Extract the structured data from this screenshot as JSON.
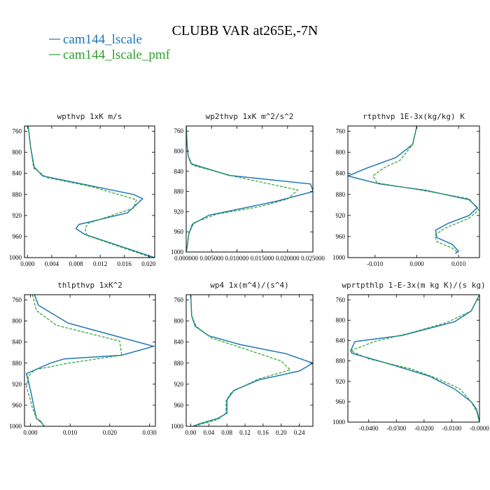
{
  "figure": {
    "title": "CLUBB VAR at265E,-7N",
    "colors": {
      "series1": "#1f77b4",
      "series2": "#2ca02c",
      "axes": "#000000"
    }
  },
  "legend": [
    {
      "name": "cam144_lscale",
      "color": "#1f77b4",
      "dash": "solid"
    },
    {
      "name": "cam144_lscale_pmf",
      "color": "#2ca02c",
      "dash": "dashed"
    }
  ],
  "chart_data": [
    {
      "type": "line",
      "title": "wpthvp 1xK m/s",
      "xlim": [
        -0.0005,
        0.021
      ],
      "ylim": [
        1000,
        750
      ],
      "xticks": [
        0.0,
        0.004,
        0.008,
        0.012,
        0.016,
        0.02
      ],
      "xtick_labels": [
        "0.000",
        "0.004",
        "0.008",
        "0.012",
        "0.016",
        "0.020"
      ],
      "yticks": [
        760,
        800,
        840,
        880,
        920,
        960,
        1000
      ],
      "ytick_labels": [
        "760",
        "800",
        "840",
        "880",
        "920",
        "960",
        "1000"
      ],
      "series": [
        {
          "name": "cam144_lscale",
          "points": [
            [
              0.0001,
              750
            ],
            [
              0.0005,
              790
            ],
            [
              0.0011,
              828
            ],
            [
              0.0025,
              845
            ],
            [
              0.0175,
              880
            ],
            [
              0.019,
              888
            ],
            [
              0.0165,
              915
            ],
            [
              0.0085,
              937
            ],
            [
              0.008,
              945
            ],
            [
              0.0095,
              956
            ],
            [
              0.021,
              1000
            ]
          ]
        },
        {
          "name": "cam144_lscale_pmf",
          "points": [
            [
              0.0001,
              750
            ],
            [
              0.0005,
              790
            ],
            [
              0.001,
              830
            ],
            [
              0.0032,
              848
            ],
            [
              0.0105,
              865
            ],
            [
              0.018,
              890
            ],
            [
              0.0175,
              906
            ],
            [
              0.01,
              935
            ],
            [
              0.0095,
              945
            ],
            [
              0.0098,
              958
            ],
            [
              0.0205,
              1000
            ]
          ]
        }
      ]
    },
    {
      "type": "line",
      "title": "wp2thvp 1xK m^2/s^2",
      "xlim": [
        0,
        0.025
      ],
      "ylim": [
        1000,
        750
      ],
      "xticks": [
        0.0,
        0.005,
        0.01,
        0.015,
        0.02,
        0.025
      ],
      "xtick_labels": [
        "0.000000",
        "0.005000",
        "0.010000",
        "0.015000",
        "0.020000",
        "0.025000"
      ],
      "yticks": [
        760,
        800,
        840,
        880,
        920,
        960,
        1000
      ],
      "ytick_labels": [
        "760",
        "800",
        "840",
        "880",
        "920",
        "960",
        "1000"
      ],
      "series": [
        {
          "name": "cam144_lscale",
          "points": [
            [
              0.0,
              750
            ],
            [
              0.0002,
              790
            ],
            [
              0.0004,
              810
            ],
            [
              0.001,
              825
            ],
            [
              0.0085,
              848
            ],
            [
              0.0245,
              865
            ],
            [
              0.0251,
              880
            ],
            [
              0.0175,
              900
            ],
            [
              0.0045,
              927
            ],
            [
              0.0012,
              945
            ],
            [
              0.0005,
              965
            ],
            [
              0.0002,
              990
            ],
            [
              0.0,
              1000
            ]
          ]
        },
        {
          "name": "cam144_lscale_pmf",
          "points": [
            [
              0.0,
              750
            ],
            [
              0.0002,
              790
            ],
            [
              0.0004,
              810
            ],
            [
              0.0013,
              828
            ],
            [
              0.0095,
              850
            ],
            [
              0.022,
              877
            ],
            [
              0.02,
              895
            ],
            [
              0.0145,
              910
            ],
            [
              0.006,
              925
            ],
            [
              0.0015,
              942
            ],
            [
              0.0005,
              965
            ],
            [
              0.0002,
              990
            ],
            [
              0.0,
              1000
            ]
          ]
        }
      ]
    },
    {
      "type": "line",
      "title": "rtpthvp 1E-3x(kg/kg) K",
      "xlim": [
        -0.0165,
        0.015
      ],
      "ylim": [
        1000,
        750
      ],
      "xticks": [
        -0.01,
        0.0,
        0.01
      ],
      "xtick_labels": [
        "-0.010",
        "0.000",
        "0.010"
      ],
      "yticks": [
        760,
        800,
        840,
        880,
        920,
        960,
        1000
      ],
      "ytick_labels": [
        "760",
        "800",
        "840",
        "880",
        "920",
        "960",
        "1000"
      ],
      "series": [
        {
          "name": "cam144_lscale",
          "points": [
            [
              0.0,
              750
            ],
            [
              -0.001,
              785
            ],
            [
              -0.005,
              810
            ],
            [
              -0.012,
              830
            ],
            [
              -0.0165,
              845
            ],
            [
              -0.009,
              860
            ],
            [
              0.002,
              872
            ],
            [
              0.0125,
              890
            ],
            [
              0.0145,
              905
            ],
            [
              0.0125,
              920
            ],
            [
              0.0075,
              935
            ],
            [
              0.0045,
              948
            ],
            [
              0.0048,
              962
            ],
            [
              0.0085,
              975
            ],
            [
              0.01,
              988
            ],
            [
              0.0092,
              992
            ]
          ]
        },
        {
          "name": "cam144_lscale_pmf",
          "points": [
            [
              0.0,
              750
            ],
            [
              -0.001,
              785
            ],
            [
              -0.004,
              815
            ],
            [
              -0.008,
              830
            ],
            [
              -0.0105,
              845
            ],
            [
              -0.0095,
              858
            ],
            [
              0.001,
              872
            ],
            [
              0.0125,
              888
            ],
            [
              0.0148,
              910
            ],
            [
              0.0125,
              925
            ],
            [
              0.0065,
              945
            ],
            [
              0.0043,
              958
            ],
            [
              0.0048,
              970
            ],
            [
              0.0085,
              982
            ],
            [
              0.0098,
              990
            ]
          ]
        }
      ]
    },
    {
      "type": "line",
      "title": "thlpthvp 1xK^2",
      "xlim": [
        -0.0015,
        0.0315
      ],
      "ylim": [
        1000,
        750
      ],
      "xticks": [
        0.0,
        0.01,
        0.02,
        0.03
      ],
      "xtick_labels": [
        "0.000",
        "0.010",
        "0.020",
        "0.030"
      ],
      "yticks": [
        760,
        800,
        840,
        880,
        920,
        960,
        1000
      ],
      "ytick_labels": [
        "760",
        "800",
        "840",
        "880",
        "920",
        "960",
        "1000"
      ],
      "series": [
        {
          "name": "cam144_lscale",
          "points": [
            [
              0.001,
              750
            ],
            [
              0.002,
              770
            ],
            [
              0.0095,
              804
            ],
            [
              0.031,
              848
            ],
            [
              0.023,
              865
            ],
            [
              0.0085,
              872
            ],
            [
              0.005,
              880
            ],
            [
              -0.001,
              900
            ],
            [
              -0.0005,
              915
            ],
            [
              0.0001,
              935
            ],
            [
              0.0008,
              960
            ],
            [
              0.0015,
              985
            ],
            [
              0.0025,
              990
            ],
            [
              0.0035,
              1000
            ]
          ]
        },
        {
          "name": "cam144_lscale_pmf",
          "points": [
            [
              0.0005,
              750
            ],
            [
              0.0015,
              780
            ],
            [
              0.0065,
              808
            ],
            [
              0.0225,
              838
            ],
            [
              0.023,
              865
            ],
            [
              0.0095,
              880
            ],
            [
              0.001,
              893
            ],
            [
              -0.0005,
              905
            ],
            [
              -0.001,
              925
            ],
            [
              -0.0002,
              945
            ],
            [
              0.0005,
              965
            ],
            [
              0.0015,
              985
            ],
            [
              0.003,
              995
            ],
            [
              0.0035,
              1000
            ]
          ]
        }
      ]
    },
    {
      "type": "line",
      "title": "wp4 1x(m^4)/(s^4)",
      "xlim": [
        -0.01,
        0.27
      ],
      "ylim": [
        1000,
        750
      ],
      "xticks": [
        0.0,
        0.04,
        0.08,
        0.12,
        0.16,
        0.2,
        0.24
      ],
      "xtick_labels": [
        "0.00",
        "0.04",
        "0.08",
        "0.12",
        "0.16",
        "0.20",
        "0.24"
      ],
      "yticks": [
        760,
        800,
        840,
        880,
        920,
        960,
        1000
      ],
      "ytick_labels": [
        "760",
        "800",
        "840",
        "880",
        "920",
        "960",
        "1000"
      ],
      "series": [
        {
          "name": "cam144_lscale",
          "points": [
            [
              0.0,
              750
            ],
            [
              0.002,
              790
            ],
            [
              0.01,
              810
            ],
            [
              0.04,
              828
            ],
            [
              0.11,
              845
            ],
            [
              0.21,
              862
            ],
            [
              0.27,
              880
            ],
            [
              0.24,
              895
            ],
            [
              0.15,
              912
            ],
            [
              0.095,
              932
            ],
            [
              0.08,
              950
            ],
            [
              0.08,
              975
            ],
            [
              0.06,
              985
            ],
            [
              0.02,
              995
            ],
            [
              0.005,
              1000
            ]
          ]
        },
        {
          "name": "cam144_lscale_pmf",
          "points": [
            [
              0.0,
              750
            ],
            [
              0.002,
              790
            ],
            [
              0.012,
              810
            ],
            [
              0.045,
              832
            ],
            [
              0.12,
              853
            ],
            [
              0.2,
              876
            ],
            [
              0.22,
              893
            ],
            [
              0.15,
              910
            ],
            [
              0.09,
              935
            ],
            [
              0.078,
              952
            ],
            [
              0.078,
              975
            ],
            [
              0.06,
              987
            ],
            [
              0.02,
              997
            ],
            [
              0.005,
              1000
            ]
          ]
        }
      ]
    },
    {
      "type": "line",
      "title": "wprtpthlp 1-E-3x(m kg K)/(s kg)",
      "xlim": [
        -0.0475,
        0.0
      ],
      "ylim": [
        1000,
        750
      ],
      "xticks": [
        -0.04,
        -0.03,
        -0.02,
        -0.01,
        0.0
      ],
      "xtick_labels": [
        "-0.0400",
        "-0.0300",
        "-0.0200",
        "-0.0100",
        "-0.0000"
      ],
      "yticks": [
        760,
        800,
        840,
        880,
        920,
        960,
        1000
      ],
      "ytick_labels": [
        "760",
        "800",
        "840",
        "880",
        "920",
        "960",
        "1000"
      ],
      "series": [
        {
          "name": "cam144_lscale",
          "points": [
            [
              0.0,
              750
            ],
            [
              -0.003,
              782
            ],
            [
              -0.009,
              803
            ],
            [
              -0.028,
              830
            ],
            [
              -0.045,
              842
            ],
            [
              -0.0465,
              860
            ],
            [
              -0.046,
              865
            ],
            [
              -0.03,
              890
            ],
            [
              -0.018,
              910
            ],
            [
              -0.009,
              935
            ],
            [
              -0.003,
              960
            ],
            [
              -0.001,
              975
            ],
            [
              0.0,
              1000
            ]
          ]
        },
        {
          "name": "cam144_lscale_pmf",
          "points": [
            [
              0.0,
              750
            ],
            [
              -0.003,
              782
            ],
            [
              -0.012,
              805
            ],
            [
              -0.025,
              825
            ],
            [
              -0.038,
              842
            ],
            [
              -0.0465,
              860
            ],
            [
              -0.04,
              876
            ],
            [
              -0.025,
              895
            ],
            [
              -0.015,
              915
            ],
            [
              -0.007,
              935
            ],
            [
              -0.003,
              960
            ],
            [
              -0.001,
              980
            ],
            [
              0.0,
              1000
            ]
          ]
        }
      ]
    }
  ]
}
